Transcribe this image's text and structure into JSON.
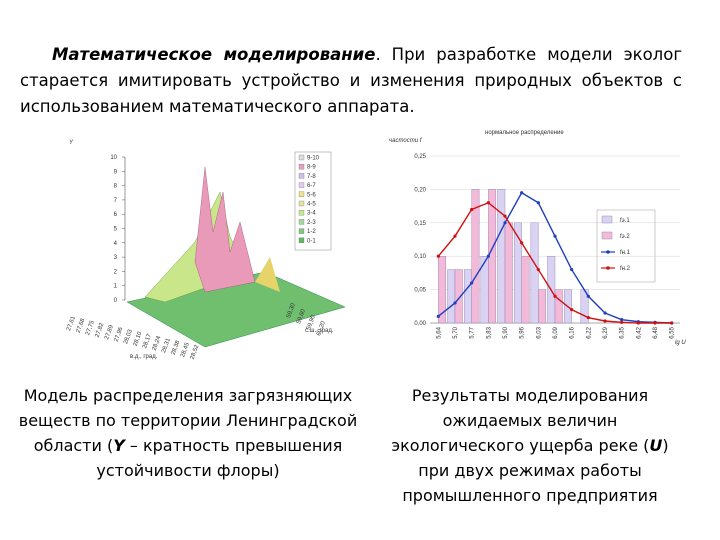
{
  "paragraph": {
    "lead": "Математическое моделирование",
    "text": ". При разработке модели эколог старается имитировать устройство и изменения природных объектов с использованием математического аппарата."
  },
  "figure_left": {
    "y_label": "Y",
    "yticks": [
      0,
      1,
      2,
      3,
      4,
      5,
      6,
      7,
      8,
      9,
      10
    ],
    "ylim": [
      0,
      10
    ],
    "legend": [
      "9-10",
      "8-9",
      "7-8",
      "6-7",
      "5-6",
      "4-5",
      "3-4",
      "2-3",
      "1-2",
      "0-1"
    ],
    "x_labels": [
      "27,61",
      "27,68",
      "27,75",
      "27,82",
      "27,89",
      "27,96",
      "28,03",
      "28,10",
      "28,17",
      "28,24",
      "28,31",
      "28,38",
      "28,45",
      "28,52"
    ],
    "x_title": "в.д., град.",
    "z_labels": [
      "59,30",
      "59,60",
      "59,90",
      "60,20"
    ],
    "z_title": "с.ш., град."
  },
  "figure_right": {
    "type": "bar",
    "title": "частости f",
    "subtitle": "нормальное распределение",
    "x_title": "lg U",
    "categories": [
      "5,64",
      "5,70",
      "5,77",
      "5,83",
      "5,90",
      "5,96",
      "6,03",
      "6,09",
      "6,16",
      "6,22",
      "6,29",
      "6,35",
      "6,42",
      "6,48",
      "6,55"
    ],
    "ylim": [
      0,
      0.25
    ],
    "yticks": [
      {
        "value": 0,
        "label": "0,00"
      },
      {
        "value": 0.05,
        "label": "0,05"
      },
      {
        "value": 0.1,
        "label": "0,10"
      },
      {
        "value": 0.15,
        "label": "0,15"
      },
      {
        "value": 0.2,
        "label": "0,20"
      },
      {
        "value": 0.25,
        "label": "0,25"
      }
    ],
    "series": [
      {
        "name": "fэ.1",
        "kind": "bar",
        "color": "#d9d2f2",
        "values": [
          0,
          0.08,
          0.08,
          0.1,
          0.2,
          0.15,
          0.15,
          0.1,
          0.05,
          0.05,
          0,
          0,
          0,
          0,
          0
        ]
      },
      {
        "name": "fэ.2",
        "kind": "bar",
        "color": "#f2b9d9",
        "values": [
          0.1,
          0.08,
          0.2,
          0.2,
          0.15,
          0.1,
          0.05,
          0.05,
          0,
          0,
          0,
          0,
          0,
          0,
          0
        ]
      },
      {
        "name": "fн.1",
        "kind": "line",
        "color": "#1f3fbf",
        "values": [
          0.01,
          0.03,
          0.06,
          0.1,
          0.15,
          0.195,
          0.18,
          0.13,
          0.08,
          0.04,
          0.015,
          0.005,
          0.002,
          0.001,
          0
        ]
      },
      {
        "name": "fн.2",
        "kind": "line",
        "color": "#d01010",
        "values": [
          0.1,
          0.13,
          0.17,
          0.18,
          0.16,
          0.12,
          0.08,
          0.04,
          0.02,
          0.008,
          0.003,
          0.001,
          0,
          0,
          0
        ]
      }
    ]
  },
  "caption_left": {
    "before": "Модель распределения загрязняющих веществ по территории Ленинградской области (",
    "symbol": "Y",
    "after": " – кратность превышения устойчивости флоры)"
  },
  "caption_right": {
    "before": "Результаты моделирования ожидаемых величин экологического ущерба реке (",
    "symbol": "U",
    "after": ") при двух режимах работы промышленного предприятия"
  }
}
